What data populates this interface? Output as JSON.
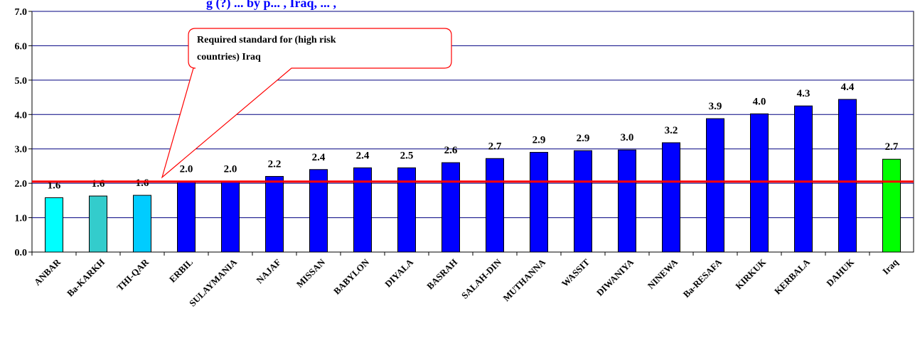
{
  "chart_data": {
    "type": "bar",
    "title": "g (?) ... by p... , Iraq, ... ,",
    "categories": [
      "ANBAR",
      "Ba-KARKH",
      "THI-QAR",
      "ERBIL",
      "SULAYMANIA",
      "NAJAF",
      "MISSAN",
      "BABYLON",
      "DIYALA",
      "BASRAH",
      "SALAH-DIN",
      "MUTHANNA",
      "WASSIT",
      "DIWANIYA",
      "NINEWA",
      "Ba-RESAFA",
      "KIRKUK",
      "KERBALA",
      "DAHUK",
      "Iraq"
    ],
    "values": [
      1.58,
      1.63,
      1.65,
      2.05,
      2.05,
      2.2,
      2.4,
      2.45,
      2.45,
      2.6,
      2.72,
      2.9,
      2.95,
      2.97,
      3.18,
      3.88,
      4.02,
      4.25,
      4.44,
      2.7
    ],
    "data_labels": [
      "1.6",
      "1.6",
      "1.6",
      "2.0",
      "2.0",
      "2.2",
      "2.4",
      "2.4",
      "2.5",
      "2.6",
      "2.7",
      "2.9",
      "2.9",
      "3.0",
      "3.2",
      "3.9",
      "4.0",
      "4.3",
      "4.4",
      "2.7"
    ],
    "bar_colors": [
      "#00ffff",
      "#33cccc",
      "#00ccff",
      "#0000ff",
      "#0000ff",
      "#0000ff",
      "#0000ff",
      "#0000ff",
      "#0000ff",
      "#0000ff",
      "#0000ff",
      "#0000ff",
      "#0000ff",
      "#0000ff",
      "#0000ff",
      "#0000ff",
      "#0000ff",
      "#0000ff",
      "#0000ff",
      "#00ff00"
    ],
    "ylim": [
      0,
      7
    ],
    "yticks": [
      "0.0",
      "1.0",
      "2.0",
      "3.0",
      "4.0",
      "5.0",
      "6.0",
      "7.0"
    ],
    "grid": true,
    "reference_line": {
      "value": 2.05,
      "color": "#ff0000"
    },
    "callout": {
      "lines": [
        "Required standard for (high risk",
        "countries) Iraq"
      ]
    }
  }
}
